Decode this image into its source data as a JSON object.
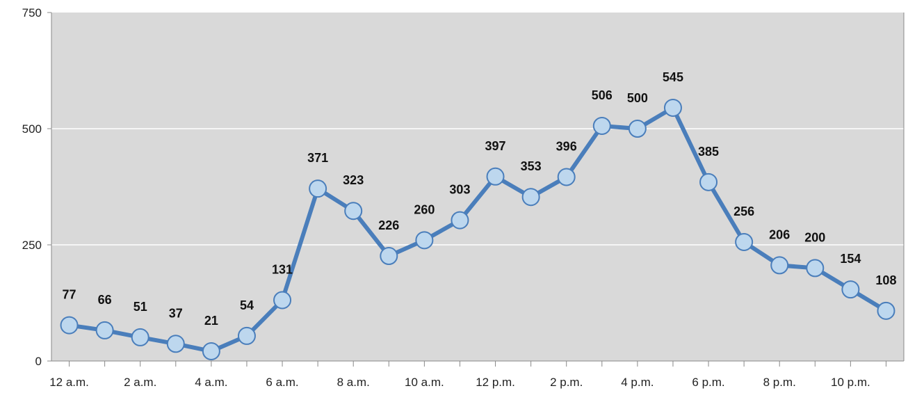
{
  "chart_data": {
    "type": "line",
    "title": "",
    "xlabel": "",
    "ylabel": "",
    "ylim": [
      0,
      750
    ],
    "yticks": [
      0,
      250,
      500,
      750
    ],
    "grid": true,
    "legend": "none",
    "categories": [
      "12 a.m.",
      "1 a.m.",
      "2 a.m.",
      "3 a.m.",
      "4 a.m.",
      "5 a.m.",
      "6 a.m.",
      "7 a.m.",
      "8 a.m.",
      "9 a.m.",
      "10 a.m.",
      "11 a.m.",
      "12 p.m.",
      "1 p.m.",
      "2 p.m.",
      "3 p.m.",
      "4 p.m.",
      "5 p.m.",
      "6 p.m.",
      "7 p.m.",
      "8 p.m.",
      "9 p.m.",
      "10 p.m.",
      "11 p.m."
    ],
    "tick_labels": [
      "12 a.m.",
      "",
      "2 a.m.",
      "",
      "4 a.m.",
      "",
      "6 a.m.",
      "",
      "8 a.m.",
      "",
      "10 a.m.",
      "",
      "12 p.m.",
      "",
      "2 p.m.",
      "",
      "4 p.m.",
      "",
      "6 p.m.",
      "",
      "8 p.m.",
      "",
      "10 p.m.",
      ""
    ],
    "values": [
      77,
      66,
      51,
      37,
      21,
      54,
      131,
      371,
      323,
      226,
      260,
      303,
      397,
      353,
      396,
      506,
      500,
      545,
      385,
      256,
      206,
      200,
      154,
      108
    ],
    "colors": {
      "line": "#4a7ebb",
      "marker_fill": "#bdd7ee",
      "marker_stroke": "#4a7ebb",
      "plot_background": "#d9d9d9",
      "gridline": "#ffffff",
      "axis": "#888888"
    }
  }
}
